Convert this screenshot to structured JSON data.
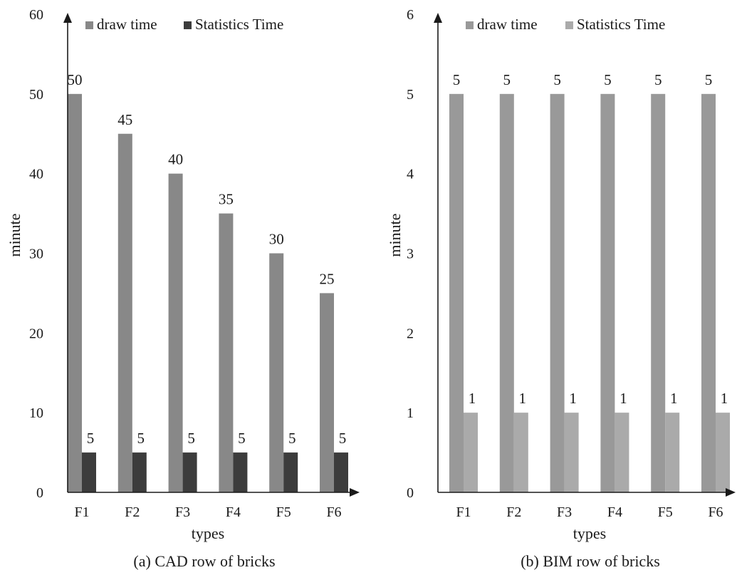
{
  "chart_data": [
    {
      "type": "bar",
      "caption": "(a) CAD row of bricks",
      "xlabel": "types",
      "ylabel": "minute",
      "categories": [
        "F1",
        "F2",
        "F3",
        "F4",
        "F5",
        "F6"
      ],
      "ylim": [
        0,
        60
      ],
      "yticks": [
        0,
        10,
        20,
        30,
        40,
        50,
        60
      ],
      "legend_position": "top",
      "series": [
        {
          "name": "draw time",
          "values": [
            50,
            45,
            40,
            35,
            30,
            25
          ],
          "color": "#888888"
        },
        {
          "name": "Statistics Time",
          "values": [
            5,
            5,
            5,
            5,
            5,
            5
          ],
          "color": "#3c3c3c"
        }
      ]
    },
    {
      "type": "bar",
      "caption": "(b) BIM row of bricks",
      "xlabel": "types",
      "ylabel": "minute",
      "categories": [
        "F1",
        "F2",
        "F3",
        "F4",
        "F5",
        "F6"
      ],
      "ylim": [
        0,
        6
      ],
      "yticks": [
        0,
        1,
        2,
        3,
        4,
        5,
        6
      ],
      "legend_position": "top",
      "series": [
        {
          "name": "draw time",
          "values": [
            5,
            5,
            5,
            5,
            5,
            5
          ],
          "color": "#999999"
        },
        {
          "name": "Statistics Time",
          "values": [
            1,
            1,
            1,
            1,
            1,
            1
          ],
          "color": "#aaaaaa"
        }
      ]
    }
  ]
}
